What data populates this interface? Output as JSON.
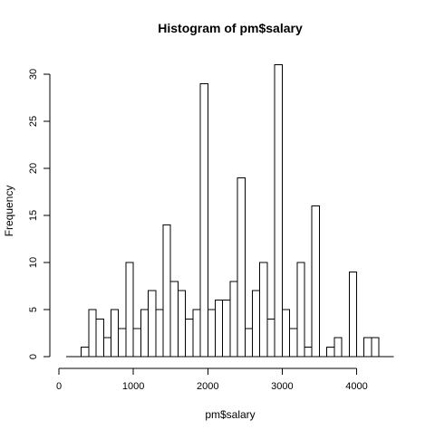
{
  "chart_data": {
    "type": "bar",
    "title": "Histogram of pm$salary",
    "xlabel": "pm$salary",
    "ylabel": "Frequency",
    "xlim": [
      0,
      4500
    ],
    "ylim": [
      0,
      31
    ],
    "x_ticks": [
      0,
      1000,
      2000,
      3000,
      4000
    ],
    "y_ticks": [
      0,
      5,
      10,
      15,
      20,
      25,
      30
    ],
    "bin_width": 100,
    "bin_starts": [
      100,
      200,
      300,
      400,
      500,
      600,
      700,
      800,
      900,
      1000,
      1100,
      1200,
      1300,
      1400,
      1500,
      1600,
      1700,
      1800,
      1900,
      2000,
      2100,
      2200,
      2300,
      2400,
      2500,
      2600,
      2700,
      2800,
      2900,
      3000,
      3100,
      3200,
      3300,
      3400,
      3500,
      3600,
      3700,
      3800,
      3900,
      4000,
      4100,
      4200,
      4300,
      4400
    ],
    "values": [
      0,
      0,
      1,
      5,
      4,
      2,
      5,
      3,
      10,
      3,
      5,
      7,
      5,
      14,
      8,
      7,
      4,
      5,
      29,
      5,
      6,
      6,
      8,
      19,
      3,
      7,
      10,
      4,
      31,
      5,
      3,
      10,
      1,
      16,
      0,
      1,
      2,
      0,
      9,
      0,
      2,
      2,
      0,
      0
    ],
    "grid": false,
    "legend": "none"
  }
}
